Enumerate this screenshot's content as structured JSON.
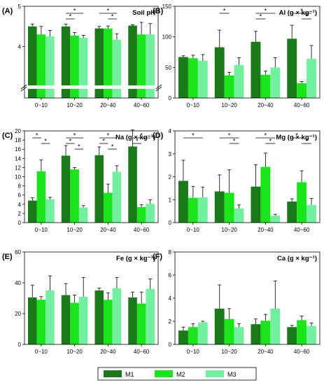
{
  "colors": {
    "M1": "#1a7a1a",
    "M2": "#19e619",
    "M3": "#72f0a0"
  },
  "legend": {
    "entries": [
      "M1",
      "M2",
      "M3"
    ]
  },
  "chart_data": [
    {
      "type": "bar",
      "panel_label": "(A)",
      "title": "Soil pH",
      "categories": [
        "0~10",
        "10~20",
        "20~40",
        "40~60"
      ],
      "axis_break": true,
      "ylim_visible": [
        3,
        5
      ],
      "yticks": [
        "4",
        "5"
      ],
      "series": [
        {
          "name": "M1",
          "values": [
            4.5,
            4.5,
            4.45,
            4.52
          ],
          "errors": [
            0.06,
            0.06,
            0.05,
            0.02
          ]
        },
        {
          "name": "M2",
          "values": [
            4.3,
            4.27,
            4.45,
            4.3
          ],
          "errors": [
            0.2,
            0.08,
            0.06,
            0.3
          ]
        },
        {
          "name": "M3",
          "values": [
            4.25,
            4.22,
            4.17,
            4.3
          ],
          "errors": [
            0.15,
            0.06,
            0.15,
            0.27
          ]
        }
      ],
      "significance": [
        {
          "category": 1,
          "from": 0,
          "to": 2,
          "level": 0
        },
        {
          "category": 1,
          "from": 0,
          "to": 1,
          "level": 1
        },
        {
          "category": 2,
          "from": 0,
          "to": 2,
          "level": 0
        },
        {
          "category": 2,
          "from": 1,
          "to": 2,
          "level": 1
        }
      ]
    },
    {
      "type": "bar",
      "panel_label": "(B)",
      "title": "Al (g × kg⁻¹)",
      "categories": [
        "0~10",
        "10~20",
        "20~40",
        "40~60"
      ],
      "ylim": [
        0,
        150
      ],
      "yticks": [
        "0",
        "50",
        "100",
        "150"
      ],
      "series": [
        {
          "name": "M1",
          "values": [
            67,
            83,
            92,
            97
          ],
          "errors": [
            2,
            28,
            17,
            22
          ]
        },
        {
          "name": "M2",
          "values": [
            65,
            37,
            38,
            24
          ],
          "errors": [
            5,
            5,
            6,
            3
          ]
        },
        {
          "name": "M3",
          "values": [
            61,
            54,
            50,
            64
          ],
          "errors": [
            10,
            12,
            16,
            22
          ]
        }
      ],
      "significance": [
        {
          "category": 1,
          "from": 0,
          "to": 1,
          "level": 0
        },
        {
          "category": 2,
          "from": 0,
          "to": 2,
          "level": 0
        },
        {
          "category": 2,
          "from": 0,
          "to": 1,
          "level": 1
        },
        {
          "category": 3,
          "from": 0,
          "to": 2,
          "level": 0
        },
        {
          "category": 3,
          "from": 1,
          "to": 2,
          "level": 1
        }
      ]
    },
    {
      "type": "bar",
      "panel_label": "(C)",
      "title": "Na (g × kg⁻¹)",
      "categories": [
        "0~10",
        "10~20",
        "20~40",
        "40~60"
      ],
      "ylim": [
        0,
        20
      ],
      "yticks": [
        "0",
        "2",
        "4",
        "6",
        "8",
        "10",
        "12",
        "14",
        "16",
        "18",
        "20"
      ],
      "series": [
        {
          "name": "M1",
          "values": [
            4.8,
            14.6,
            14.7,
            16.6
          ],
          "errors": [
            0.6,
            2.2,
            1.8,
            3.6
          ]
        },
        {
          "name": "M2",
          "values": [
            11.2,
            11.6,
            6.5,
            3.4
          ],
          "errors": [
            2.5,
            0.4,
            1.9,
            0.5
          ]
        },
        {
          "name": "M3",
          "values": [
            5.1,
            3.3,
            11.1,
            4.1
          ],
          "errors": [
            0.4,
            0.4,
            1.3,
            0.9
          ]
        }
      ],
      "significance": [
        {
          "category": 0,
          "from": 0,
          "to": 1,
          "level": 0
        },
        {
          "category": 0,
          "from": 1,
          "to": 2,
          "level": 1
        },
        {
          "category": 1,
          "from": 0,
          "to": 2,
          "level": 0
        },
        {
          "category": 1,
          "from": 0,
          "to": 1,
          "level": 1
        },
        {
          "category": 1,
          "from": 1,
          "to": 2,
          "level": 2
        },
        {
          "category": 2,
          "from": 0,
          "to": 2,
          "level": 0
        },
        {
          "category": 2,
          "from": 0,
          "to": 1,
          "level": 1
        },
        {
          "category": 2,
          "from": 1,
          "to": 2,
          "level": 2
        },
        {
          "category": 3,
          "from": 0,
          "to": 2,
          "level": 0
        },
        {
          "category": 3,
          "from": 0,
          "to": 1,
          "level": 1
        }
      ]
    },
    {
      "type": "bar",
      "panel_label": "(D)",
      "title": "Mg (g × kg⁻¹)",
      "categories": [
        "0~10",
        "10~20",
        "20~40",
        "40~60"
      ],
      "ylim": [
        0,
        4
      ],
      "yticks": [
        "0",
        "1",
        "2",
        "3",
        "4"
      ],
      "series": [
        {
          "name": "M1",
          "values": [
            1.82,
            1.36,
            1.57,
            0.92
          ],
          "errors": [
            0.9,
            0.72,
            0.95,
            0.12
          ]
        },
        {
          "name": "M2",
          "values": [
            1.08,
            1.3,
            2.43,
            1.76
          ],
          "errors": [
            0.5,
            1.0,
            0.6,
            0.5
          ]
        },
        {
          "name": "M3",
          "values": [
            1.1,
            0.62,
            0.3,
            0.77
          ],
          "errors": [
            0.45,
            0.15,
            0.06,
            0.28
          ]
        }
      ],
      "significance": [
        {
          "category": 0,
          "from": 0,
          "to": 2,
          "level": 0
        },
        {
          "category": 1,
          "from": 0,
          "to": 2,
          "level": 0
        },
        {
          "category": 1,
          "from": 1,
          "to": 2,
          "level": 1
        },
        {
          "category": 2,
          "from": 0,
          "to": 2,
          "level": 0
        },
        {
          "category": 2,
          "from": 1,
          "to": 2,
          "level": 1
        },
        {
          "category": 3,
          "from": 0,
          "to": 1,
          "level": 0
        },
        {
          "category": 3,
          "from": 1,
          "to": 2,
          "level": 1
        }
      ]
    },
    {
      "type": "bar",
      "panel_label": "(E)",
      "title": "Fe (g × kg⁻¹)",
      "categories": [
        "0~10",
        "10~20",
        "20~40",
        "40~60"
      ],
      "ylim": [
        0,
        60
      ],
      "yticks": [
        "0",
        "20",
        "40",
        "60"
      ],
      "series": [
        {
          "name": "M1",
          "values": [
            30.5,
            32,
            35,
            30.5
          ],
          "errors": [
            8,
            7.5,
            1.5,
            3.5
          ]
        },
        {
          "name": "M2",
          "values": [
            29,
            27,
            29,
            26.5
          ],
          "errors": [
            2,
            5,
            4.5,
            7.5
          ]
        },
        {
          "name": "M3",
          "values": [
            35,
            31,
            36.5,
            36
          ],
          "errors": [
            9.5,
            12.5,
            7,
            6.5
          ]
        }
      ],
      "significance": []
    },
    {
      "type": "bar",
      "panel_label": "(F)",
      "title": "Ca (g × kg⁻¹)",
      "categories": [
        "0~10",
        "10~20",
        "20~40",
        "40~60"
      ],
      "ylim": [
        0,
        8
      ],
      "yticks": [
        "0",
        "2",
        "4",
        "6",
        "8"
      ],
      "series": [
        {
          "name": "M1",
          "values": [
            1.2,
            3.1,
            1.75,
            1.5
          ],
          "errors": [
            0.3,
            2.05,
            0.45,
            0.15
          ]
        },
        {
          "name": "M2",
          "values": [
            1.5,
            2.2,
            2.05,
            2.1
          ],
          "errors": [
            0.3,
            0.9,
            0.55,
            0.35
          ]
        },
        {
          "name": "M3",
          "values": [
            1.9,
            1.5,
            3.1,
            1.6
          ],
          "errors": [
            0.1,
            0.3,
            2.4,
            0.25
          ]
        }
      ],
      "significance": []
    }
  ]
}
